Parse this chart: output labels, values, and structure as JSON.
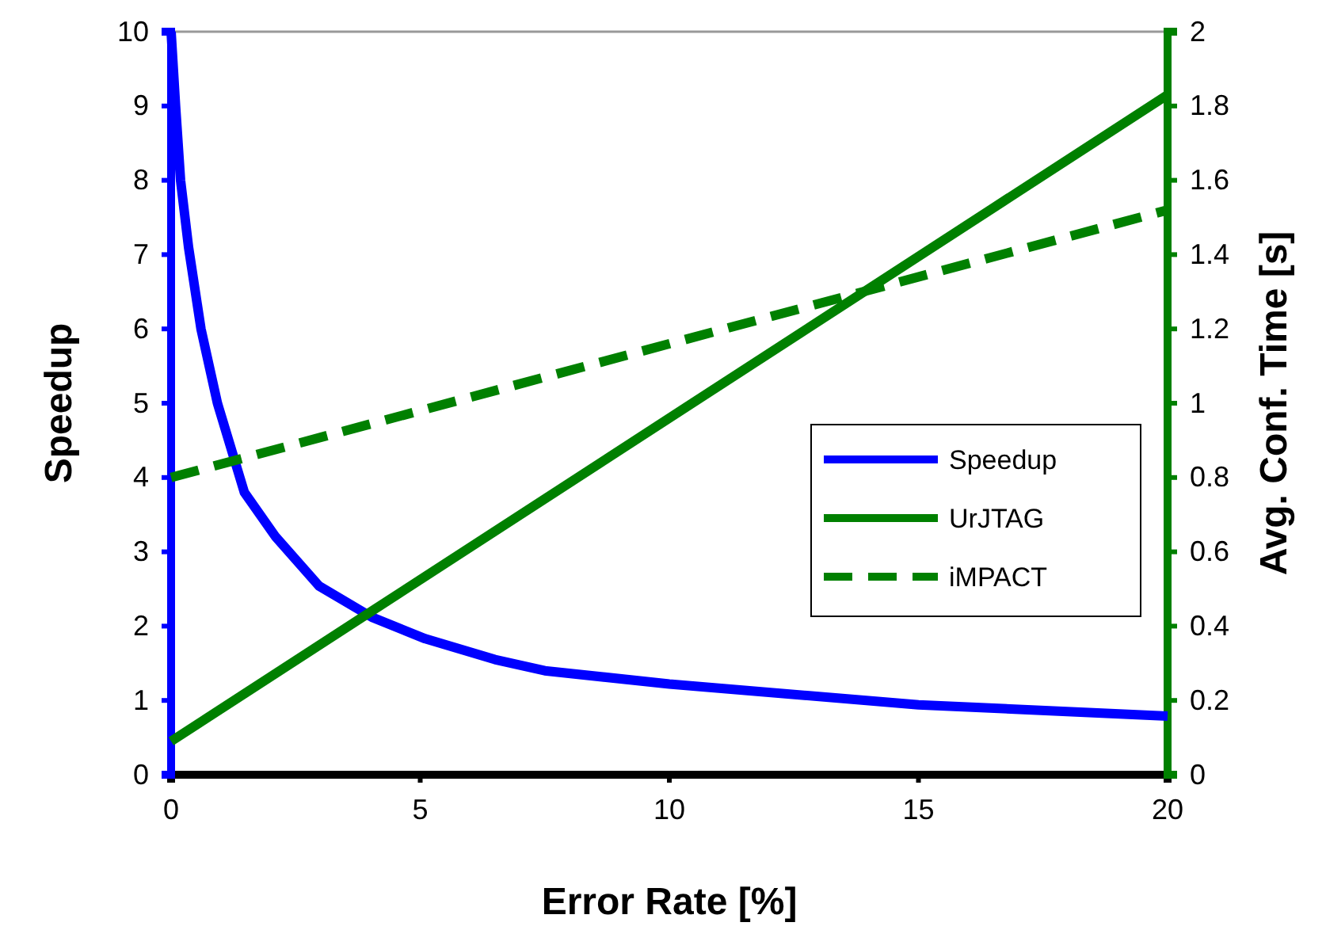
{
  "chart_data": {
    "type": "line",
    "xlabel": "Error Rate [%]",
    "ylabel": "Speedup",
    "y2label": "Avg. Conf. Time [s]",
    "xlim": [
      0,
      20
    ],
    "xticks": [
      0,
      5,
      10,
      15,
      20
    ],
    "ylim": [
      0,
      10
    ],
    "yticks": [
      0,
      1,
      2,
      3,
      4,
      5,
      6,
      7,
      8,
      9,
      10
    ],
    "y2lim": [
      0,
      2
    ],
    "y2ticks": [
      0,
      0.2,
      0.4,
      0.6,
      0.8,
      1,
      1.2,
      1.4,
      1.6,
      1.8,
      2
    ],
    "legend": "right",
    "grid": false,
    "marker": "none",
    "series": [
      {
        "name": "Speedup",
        "color": "#0000ff",
        "line_style": "solid",
        "x": [
          0,
          0.09,
          0.19,
          0.35,
          0.6,
          0.93,
          1.47,
          2.1,
          2.97,
          4.03,
          5.1,
          6.5,
          7.5,
          10,
          15,
          20
        ],
        "values": [
          10,
          9.0,
          8.0,
          7.1,
          6.0,
          5.0,
          3.8,
          3.2,
          2.54,
          2.12,
          1.83,
          1.55,
          1.4,
          1.22,
          0.94,
          0.79
        ]
      },
      {
        "name": "UrJTAG",
        "color": "#008000",
        "axis": "y2",
        "line_style": "solid",
        "x": [
          0,
          20
        ],
        "values": [
          0.09,
          1.83
        ]
      },
      {
        "name": "iMPACT",
        "color": "#008000",
        "axis": "y2",
        "line_style": "dashed",
        "x": [
          0,
          20
        ],
        "values": [
          0.8,
          1.52
        ]
      }
    ]
  }
}
